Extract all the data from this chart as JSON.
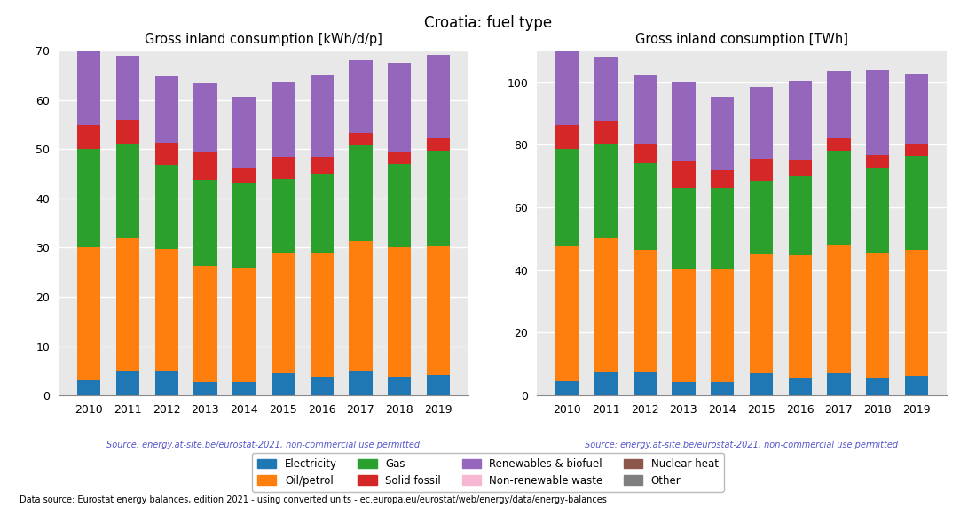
{
  "title": "Croatia: fuel type",
  "years": [
    2010,
    2011,
    2012,
    2013,
    2014,
    2015,
    2016,
    2017,
    2018,
    2019
  ],
  "left_title": "Gross inland consumption [kWh/d/p]",
  "right_title": "Gross inland consumption [TWh]",
  "source_text": "Source: energy.at-site.be/eurostat-2021, non-commercial use permitted",
  "bottom_text": "Data source: Eurostat energy balances, edition 2021 - using converted units - ec.europa.eu/eurostat/web/energy/data/energy-balances",
  "left_ylim": [
    0,
    70
  ],
  "right_ylim": [
    0,
    110
  ],
  "left_yticks": [
    0,
    10,
    20,
    30,
    40,
    50,
    60,
    70
  ],
  "right_yticks": [
    0,
    20,
    40,
    60,
    80,
    100
  ],
  "categories": [
    "Electricity",
    "Oil/petrol",
    "Gas",
    "Solid fossil",
    "Renewables & biofuel",
    "Non-renewable waste",
    "Nuclear heat",
    "Other"
  ],
  "colors": [
    "#1f77b4",
    "#ff7f0e",
    "#2ca02c",
    "#d62728",
    "#9467bd",
    "#f7b6d2",
    "#8c564b",
    "#7f7f7f"
  ],
  "left_data": {
    "Electricity": [
      3.0,
      4.8,
      4.8,
      2.8,
      2.8,
      4.5,
      3.8,
      4.8,
      3.8,
      4.2
    ],
    "Oil/petrol": [
      27.0,
      27.2,
      25.0,
      23.5,
      23.2,
      24.5,
      25.2,
      26.5,
      26.2,
      26.0
    ],
    "Gas": [
      20.0,
      19.0,
      17.0,
      17.5,
      17.0,
      15.0,
      16.0,
      19.5,
      17.0,
      19.5
    ],
    "Solid fossil": [
      5.0,
      5.0,
      4.5,
      5.5,
      3.2,
      4.5,
      3.5,
      2.5,
      2.5,
      2.5
    ],
    "Renewables & biofuel": [
      15.0,
      13.0,
      13.5,
      14.0,
      14.5,
      15.0,
      16.5,
      14.7,
      18.0,
      17.0
    ],
    "Non-renewable waste": [
      0.0,
      0.0,
      0.0,
      0.0,
      0.0,
      0.0,
      0.0,
      0.0,
      0.0,
      0.0
    ],
    "Nuclear heat": [
      0.0,
      0.0,
      0.0,
      0.0,
      0.0,
      0.0,
      0.0,
      0.0,
      0.0,
      0.0
    ],
    "Other": [
      0.0,
      0.0,
      0.0,
      0.0,
      0.0,
      0.0,
      0.0,
      0.0,
      0.0,
      0.0
    ]
  },
  "right_data": {
    "Electricity": [
      4.7,
      7.5,
      7.5,
      4.3,
      4.3,
      7.0,
      5.8,
      7.2,
      5.7,
      6.3
    ],
    "Oil/petrol": [
      43.0,
      43.0,
      39.0,
      36.0,
      36.0,
      38.0,
      39.0,
      41.0,
      40.0,
      40.0
    ],
    "Gas": [
      31.0,
      29.5,
      27.5,
      26.0,
      26.0,
      23.5,
      25.0,
      30.0,
      27.0,
      30.0
    ],
    "Solid fossil": [
      7.5,
      7.5,
      6.5,
      8.5,
      5.5,
      7.0,
      5.5,
      3.8,
      4.0,
      3.8
    ],
    "Renewables & biofuel": [
      24.5,
      20.5,
      21.5,
      25.0,
      23.5,
      23.0,
      25.0,
      21.5,
      27.0,
      22.5
    ],
    "Non-renewable waste": [
      0.0,
      0.0,
      0.0,
      0.0,
      0.0,
      0.0,
      0.0,
      0.0,
      0.0,
      0.0
    ],
    "Nuclear heat": [
      0.0,
      0.0,
      0.0,
      0.0,
      0.0,
      0.0,
      0.0,
      0.0,
      0.0,
      0.0
    ],
    "Other": [
      0.0,
      0.0,
      0.0,
      0.0,
      0.0,
      0.0,
      0.0,
      0.0,
      0.0,
      0.0
    ]
  }
}
